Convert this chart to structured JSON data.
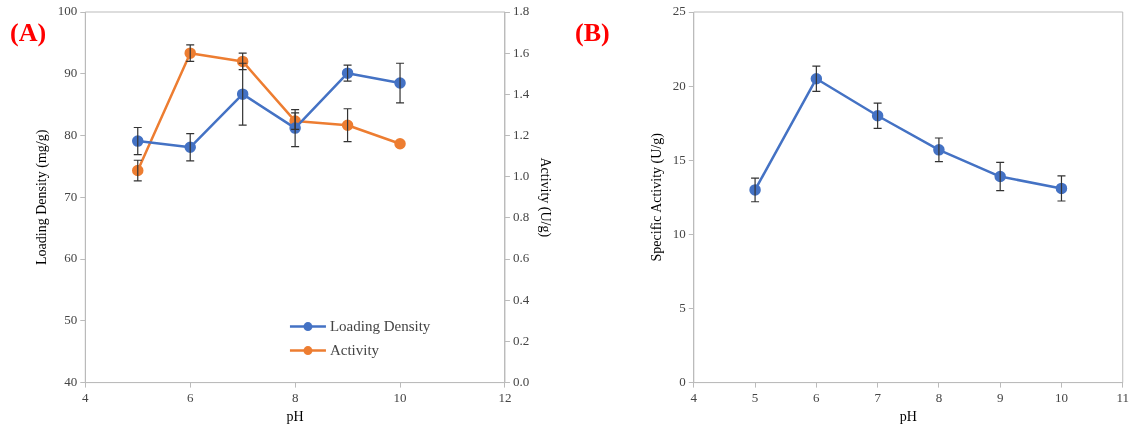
{
  "chart_data": [
    {
      "type": "line",
      "title": "(A)",
      "xlabel": "pH",
      "ylabel": "Loading Density (mg/g)",
      "y2label": "Activity (U/g)",
      "x": [
        5,
        6,
        7,
        8,
        9,
        10
      ],
      "xlim": [
        4,
        12
      ],
      "xticks": [
        4,
        6,
        8,
        10,
        12
      ],
      "ylim": [
        40,
        100
      ],
      "yticks": [
        40,
        50,
        60,
        70,
        80,
        90,
        100
      ],
      "y2lim": [
        0,
        1.8
      ],
      "y2ticks": [
        {
          "value": 0,
          "label": "0.0"
        },
        {
          "value": 0.2,
          "label": "0.2"
        },
        {
          "value": 0.4,
          "label": "0.4"
        },
        {
          "value": 0.6,
          "label": "0.6"
        },
        {
          "value": 0.8,
          "label": "0.8"
        },
        {
          "value": 1,
          "label": "1.0"
        },
        {
          "value": 1.2,
          "label": "1.2"
        },
        {
          "value": 1.4,
          "label": "1.4"
        },
        {
          "value": 1.6,
          "label": "1.6"
        },
        {
          "value": 1.8,
          "label": "1.8"
        }
      ],
      "series": [
        {
          "name": "Loading Density",
          "color": "#4472c4",
          "values": [
            79.1,
            78.1,
            86.7,
            81.2,
            90.1,
            88.5
          ],
          "errors": [
            2.2,
            2.2,
            5,
            3,
            1.3,
            3.2
          ]
        },
        {
          "name": "Activity",
          "color": "#ed7d31",
          "axis": "y2",
          "values": [
            1.03,
            1.6,
            1.56,
            1.27,
            1.25,
            1.16
          ],
          "errors": [
            0.05,
            0.04,
            0.04,
            0.04,
            0.08,
            null
          ]
        }
      ],
      "marker": "circle",
      "grid": false,
      "legend": "bottom right"
    },
    {
      "type": "line",
      "title": "(B)",
      "xlabel": "pH",
      "ylabel": "Specific Activity (U/g)",
      "x": [
        5,
        6,
        7,
        8,
        9,
        10
      ],
      "xlim": [
        4,
        11
      ],
      "xticks": [
        4,
        5,
        6,
        7,
        8,
        9,
        10,
        11
      ],
      "ylim": [
        0,
        25
      ],
      "yticks": [
        0,
        5,
        10,
        15,
        20,
        25
      ],
      "series": [
        {
          "color": "#4472c4",
          "values": [
            13,
            20.5,
            18,
            15.7,
            13.9,
            13.1
          ],
          "errors": [
            0.8,
            0.85,
            0.85,
            0.8,
            0.95,
            0.85
          ]
        }
      ],
      "marker": "circle",
      "grid": false,
      "legend": false
    }
  ]
}
